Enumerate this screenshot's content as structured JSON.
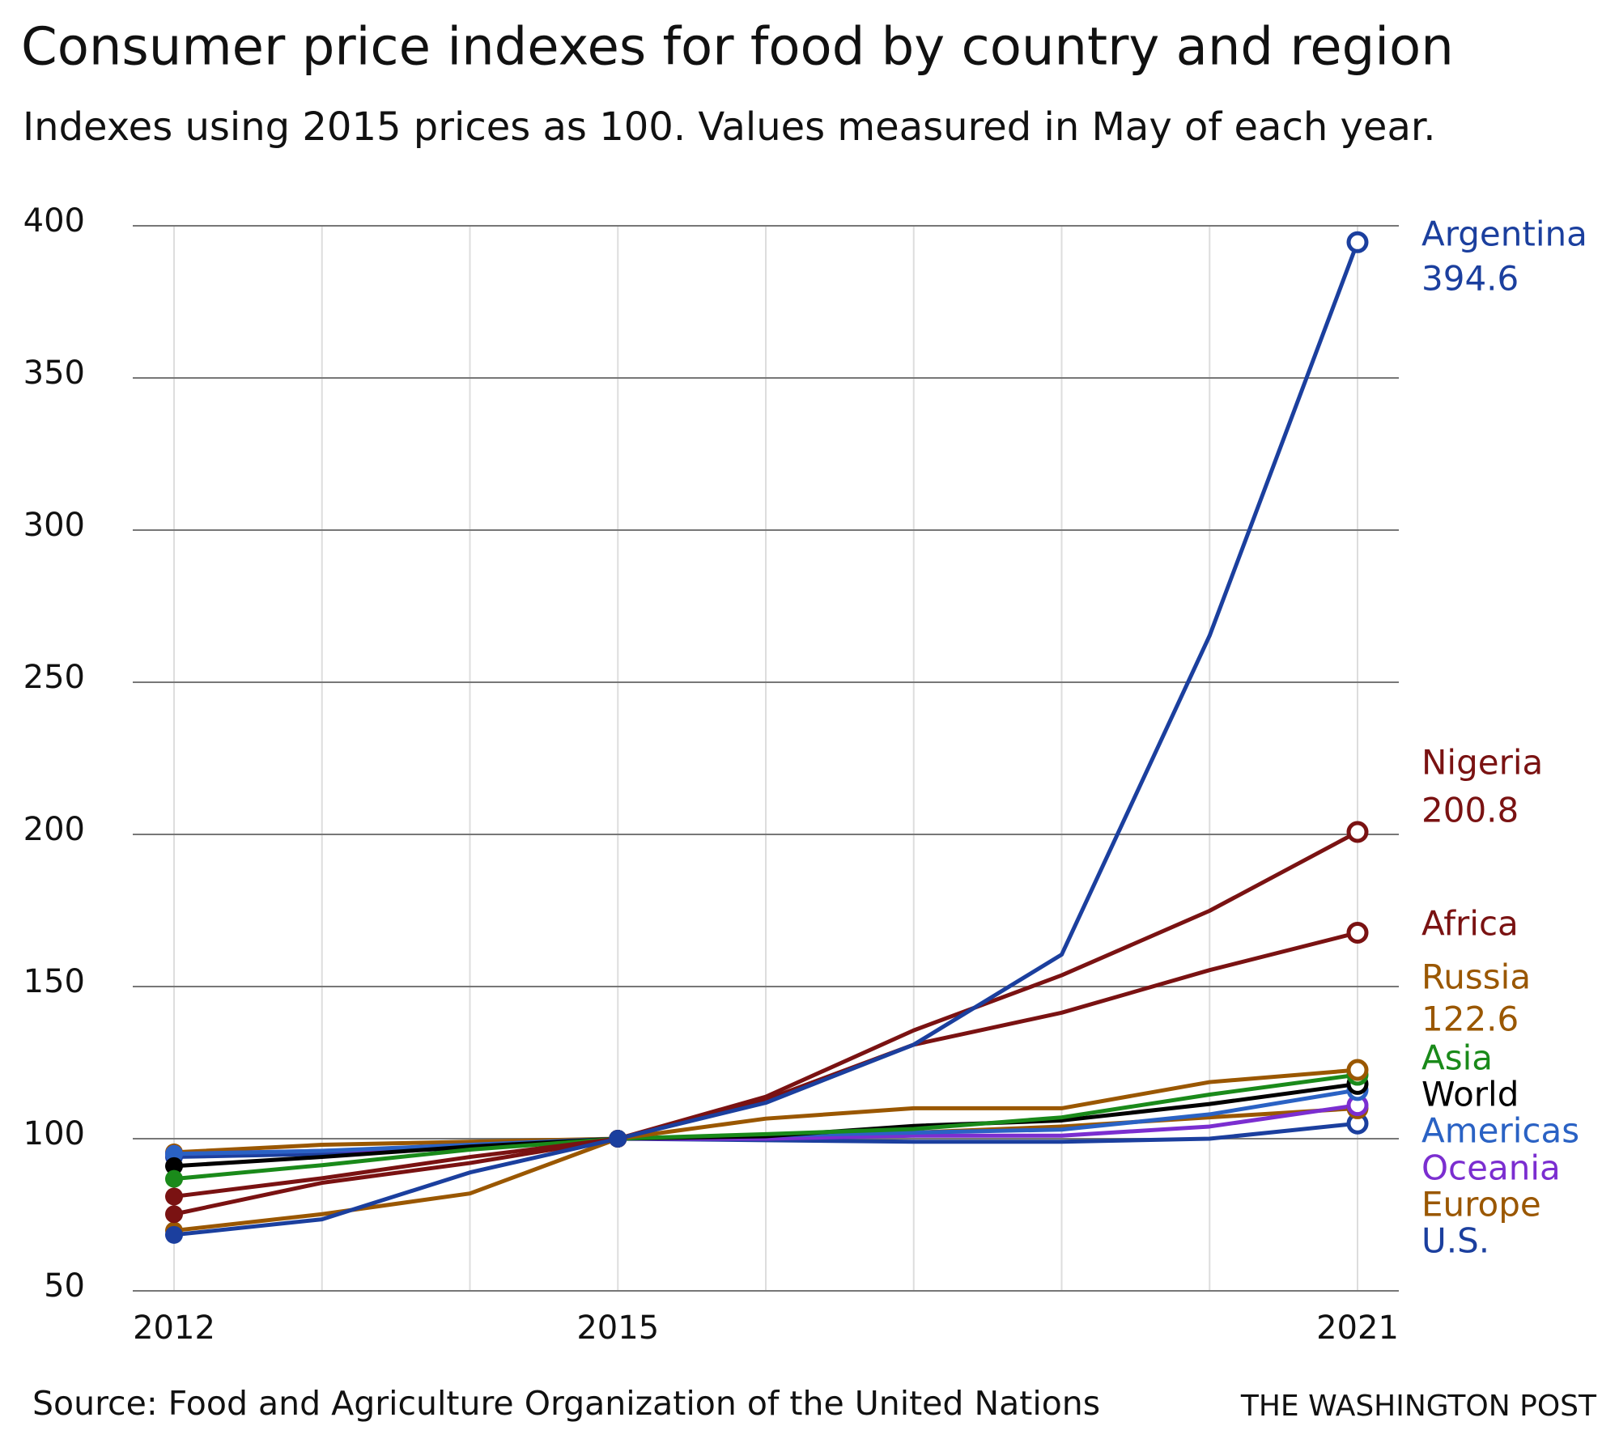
{
  "chart_data": {
    "type": "line",
    "title": "Consumer price indexes for food by country and region",
    "subtitle": "Indexes using 2015 prices as 100. Values measured in May of each year.",
    "source": "Source: Food and Agriculture Organization of the United Nations",
    "credit": "THE WASHINGTON POST",
    "categories": [
      "2012",
      null,
      null,
      "2015",
      null,
      null,
      null,
      null,
      "2021"
    ],
    "ylim": [
      50,
      400
    ],
    "yticks": [
      50,
      100,
      150,
      200,
      250,
      300,
      350,
      400
    ],
    "grid": true,
    "series": [
      {
        "name": "Argentina",
        "color": "#1b3f9e",
        "values": [
          68.4,
          73.5,
          88.9,
          100,
          111.8,
          130.9,
          160.5,
          265.3,
          394.6
        ]
      },
      {
        "name": "Nigeria",
        "color": "#7a1212",
        "values": [
          81,
          87,
          94,
          100,
          113.8,
          135.6,
          153.7,
          174.9,
          200.8
        ]
      },
      {
        "name": "Africa",
        "color": "#7a1212",
        "values": [
          75.2,
          85.5,
          92,
          100,
          112.8,
          130.9,
          141.4,
          155.4,
          167.7
        ]
      },
      {
        "name": "Russia",
        "color": "#9a5700",
        "values": [
          69.8,
          75.2,
          82,
          100,
          106.6,
          110,
          110,
          118.6,
          122.6
        ]
      },
      {
        "name": "Asia",
        "color": "#1a8a1a",
        "values": [
          86.8,
          91.3,
          96.4,
          100,
          101.5,
          103.2,
          107,
          114.5,
          121
        ]
      },
      {
        "name": "World",
        "color": "#000000",
        "values": [
          91,
          94,
          97.4,
          100,
          100.8,
          104.2,
          106,
          111.4,
          118
        ]
      },
      {
        "name": "Americas",
        "color": "#2a62c4",
        "values": [
          95,
          96,
          98,
          100,
          101,
          102,
          103,
          108,
          116
        ]
      },
      {
        "name": "Oceania",
        "color": "#7b2ed0",
        "values": [
          95,
          96,
          97,
          100,
          100,
          101,
          101,
          104,
          111
        ]
      },
      {
        "name": "Europe",
        "color": "#9a5700",
        "values": [
          95.5,
          98,
          99,
          100,
          101,
          102,
          104,
          107,
          110
        ]
      },
      {
        "name": "U.S.",
        "color": "#1b3f9e",
        "values": [
          94,
          95,
          97,
          100,
          99.5,
          99,
          99,
          100,
          105
        ]
      }
    ]
  }
}
